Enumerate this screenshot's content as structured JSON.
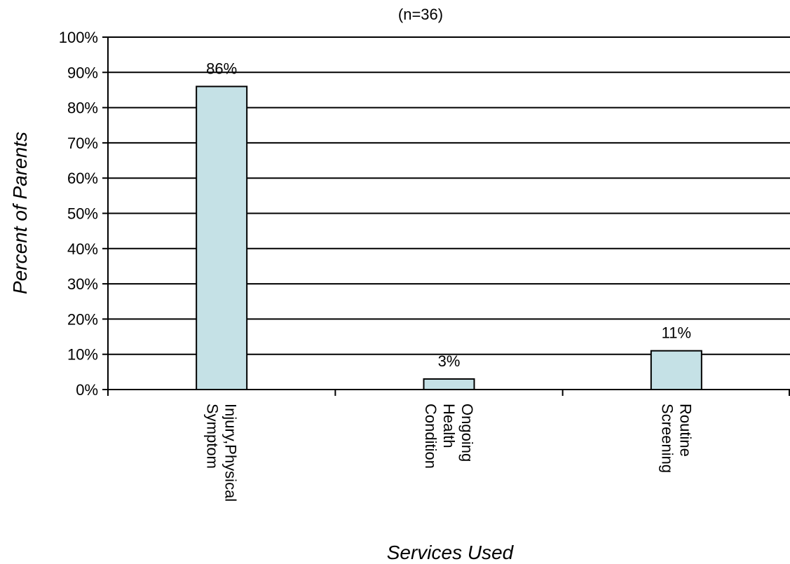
{
  "chart_data": {
    "type": "bar",
    "title": "(n=36)",
    "xlabel": "Services Used",
    "ylabel": "Percent of Parents",
    "categories": [
      [
        "Injury,Physical",
        "Symptom"
      ],
      [
        "Ongoing",
        "Health",
        "Condition"
      ],
      [
        "Routine",
        "Screening"
      ]
    ],
    "values": [
      86,
      3,
      11
    ],
    "data_labels": [
      "86%",
      "3%",
      "11%"
    ],
    "ylim": [
      0,
      100
    ],
    "yticks": [
      "0%",
      "10%",
      "20%",
      "30%",
      "40%",
      "50%",
      "60%",
      "70%",
      "80%",
      "90%",
      "100%"
    ],
    "grid": true,
    "legend": "none",
    "bar_color": "#c5e1e6",
    "bar_edge_color": "#000000"
  }
}
